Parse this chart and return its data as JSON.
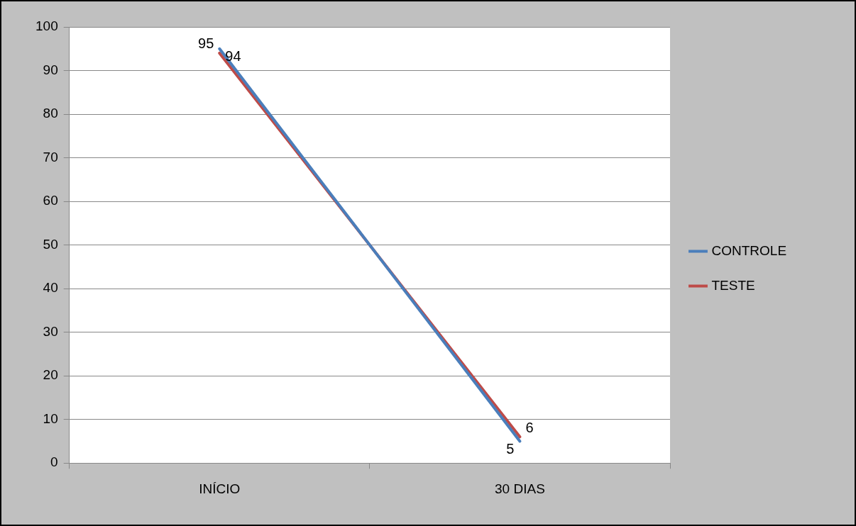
{
  "chart_data": {
    "type": "line",
    "categories": [
      "INÍCIO",
      "30 DIAS"
    ],
    "series": [
      {
        "name": "CONTROLE",
        "color": "#4a7ebb",
        "values": [
          95,
          5
        ]
      },
      {
        "name": "TESTE",
        "color": "#be4b48",
        "values": [
          94,
          6
        ]
      }
    ],
    "ylim": [
      0,
      100
    ],
    "yticks": [
      0,
      10,
      20,
      30,
      40,
      50,
      60,
      70,
      80,
      90,
      100
    ],
    "grid": "y",
    "legend": "right",
    "marker": "none",
    "line_style": "solid",
    "data_labels": true
  }
}
